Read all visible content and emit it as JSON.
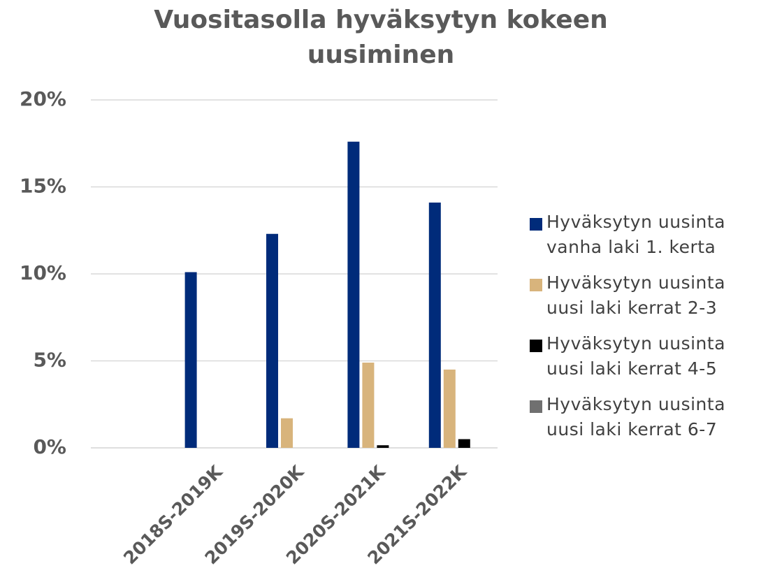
{
  "chart_data": {
    "type": "bar",
    "title": "Vuositasolla hyväksytyn kokeen",
    "subtitle": "uusiminen",
    "categories": [
      null,
      "2018S-2019K",
      "2019S-2020K",
      "2020S-2021K",
      "2021S-2022K"
    ],
    "series": [
      {
        "name": "Hyväksytyn uusinta vanha laki 1. kerta",
        "color": "#002b7a",
        "values": [
          null,
          10.1,
          12.3,
          17.6,
          14.1
        ]
      },
      {
        "name": "Hyväksytyn uusinta uusi laki kerrat 2-3",
        "color": "#d8b47c",
        "values": [
          null,
          0,
          1.7,
          4.9,
          4.5
        ]
      },
      {
        "name": "Hyväksytyn uusinta uusi laki kerrat 4-5",
        "color": "#000000",
        "values": [
          null,
          0,
          0,
          0.15,
          0.5
        ]
      },
      {
        "name": "Hyväksytyn uusinta uusi laki kerrat 6-7",
        "color": "#707070",
        "values": [
          null,
          0,
          0,
          0,
          0
        ]
      }
    ],
    "ylim": [
      0,
      20
    ],
    "yticks": [
      {
        "value": 0,
        "label": "0%"
      },
      {
        "value": 5,
        "label": "5%"
      },
      {
        "value": 10,
        "label": "10%"
      },
      {
        "value": 15,
        "label": "15%"
      },
      {
        "value": 20,
        "label": "20%"
      }
    ],
    "grid": true,
    "legend": "right"
  }
}
